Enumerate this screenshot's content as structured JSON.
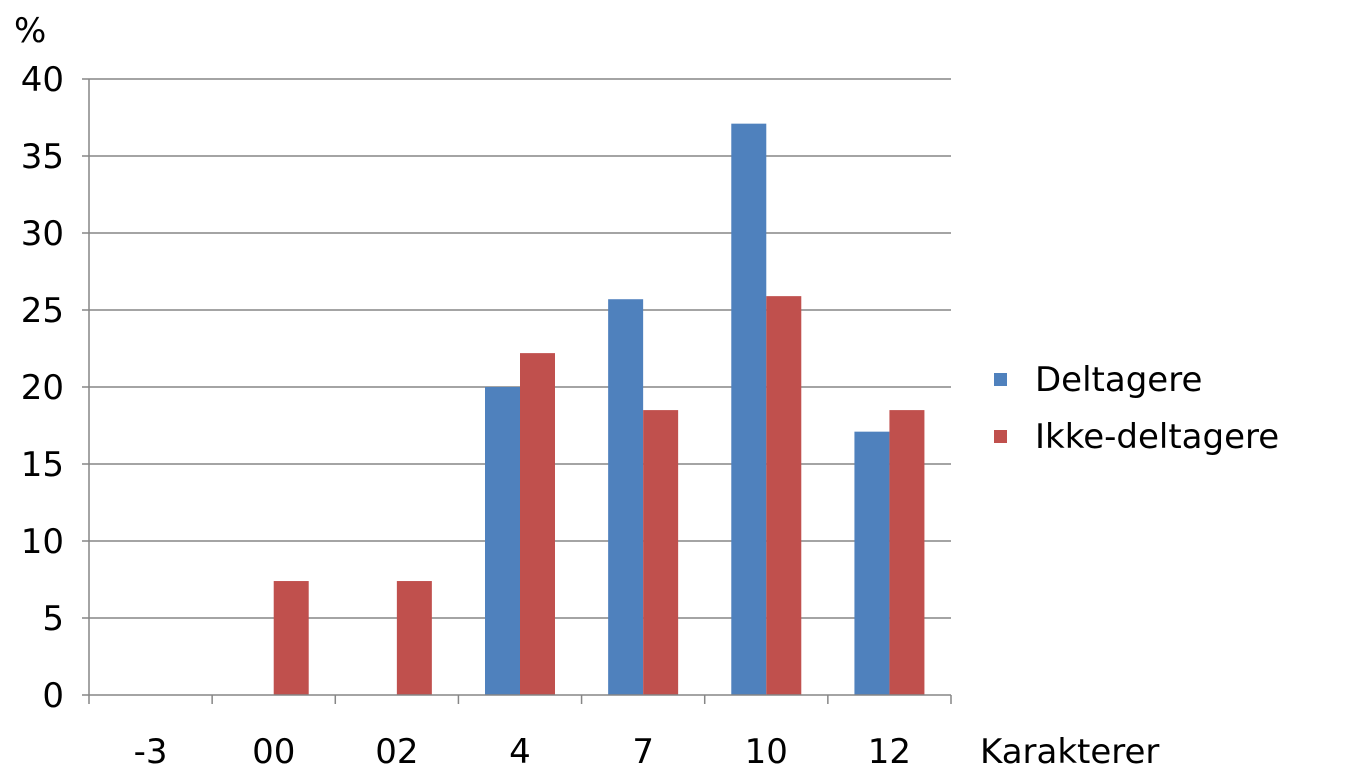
{
  "chart_data": {
    "type": "bar",
    "title": "",
    "ylabel": "%",
    "xlabel": "Karakterer",
    "ylim": [
      0,
      40
    ],
    "yticks": [
      "0",
      "5",
      "10",
      "15",
      "20",
      "25",
      "30",
      "35",
      "40"
    ],
    "categories": [
      "-3",
      "00",
      "02",
      "4",
      "7",
      "10",
      "12"
    ],
    "series": [
      {
        "name": "Deltagere",
        "color": "#4f81bd",
        "values": [
          0,
          0,
          0,
          20,
          25.7,
          37.1,
          17.1
        ]
      },
      {
        "name": "Ikke-deltagere",
        "color": "#c0504d",
        "values": [
          0,
          7.4,
          7.4,
          22.2,
          18.5,
          25.9,
          18.5
        ]
      }
    ],
    "grid": true,
    "legend_position": "right"
  }
}
